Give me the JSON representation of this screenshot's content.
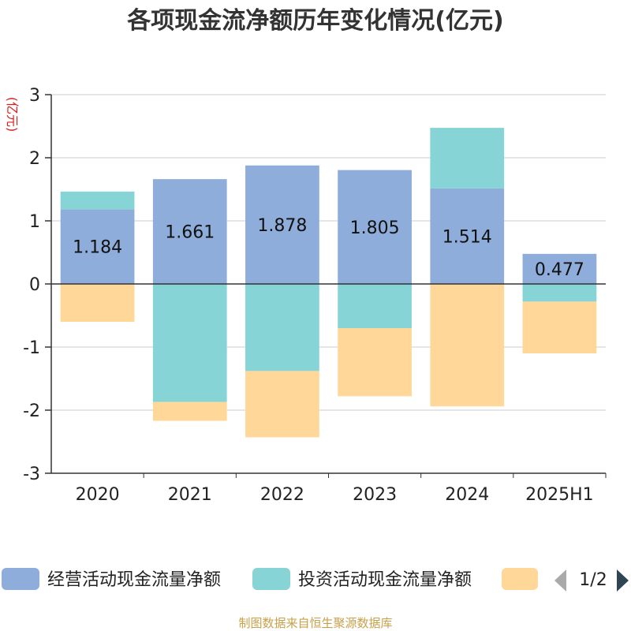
{
  "chart_data": {
    "type": "bar",
    "stacked": true,
    "title": "各项现金流净额历年变化情况(亿元)",
    "ylabel": "(亿元)",
    "ylim": [
      -3,
      3
    ],
    "yticks": [
      -3,
      -2,
      -1,
      0,
      1,
      2,
      3
    ],
    "grid": true,
    "categories": [
      "2020",
      "2021",
      "2022",
      "2023",
      "2024",
      "2025H1"
    ],
    "series": [
      {
        "name": "经营活动现金流量净额",
        "color": "#8eadda",
        "values": [
          1.184,
          1.661,
          1.878,
          1.805,
          1.514,
          0.477
        ],
        "labels": [
          "1.184",
          "1.661",
          "1.878",
          "1.805",
          "1.514",
          "0.477"
        ]
      },
      {
        "name": "投资活动现金流量净额",
        "color": "#86d4d6",
        "values": [
          0.28,
          -1.87,
          -1.38,
          -0.7,
          0.96,
          -0.28
        ]
      },
      {
        "name": "",
        "color": "#ffd899",
        "values": [
          -0.6,
          -0.3,
          -1.05,
          -1.08,
          -1.94,
          -0.82
        ]
      }
    ],
    "legend": {
      "position": "bottom",
      "page": "1/2"
    }
  },
  "source": "制图数据来自恒生聚源数据库",
  "legend_nav": {
    "prev_icon": "triangle-left",
    "next_icon": "triangle-right",
    "prev_color": "#aaaaaa",
    "next_color": "#2f4554"
  }
}
